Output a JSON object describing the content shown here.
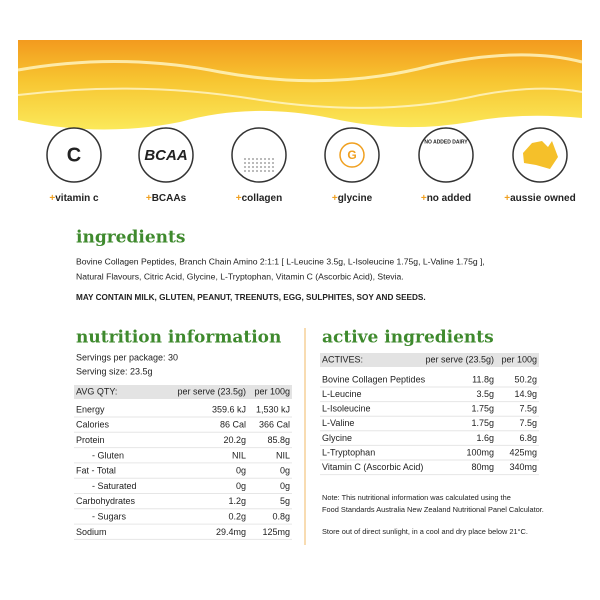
{
  "banner_icons": [
    {
      "symbol": "C",
      "bullet": "+",
      "label": "vitamin c"
    },
    {
      "symbol": "BCAA",
      "bullet": "+",
      "label": "BCAAs"
    },
    {
      "bullet": "+",
      "label": "collagen"
    },
    {
      "symbol": "G",
      "bullet": "+",
      "label": "glycine"
    },
    {
      "symbol": "NO ADDED DAIRY",
      "bullet": "+",
      "label": "no added"
    },
    {
      "bullet": "+",
      "label": "aussie owned"
    }
  ],
  "ingredients": {
    "heading": "ingredients",
    "text_lines": [
      "Bovine Collagen Peptides, Branch Chain Amino 2:1:1 [ L-Leucine 3.5g, L-Isoleucine 1.75g, L-Valine 1.75g ],",
      "Natural Flavours, Citric Acid, Glycine, L-Tryptophan, Vitamin C (Ascorbic Acid), Stevia."
    ],
    "allergens": "MAY CONTAIN MILK, GLUTEN, PEANUT, TREENUTS, EGG, SULPHITES, SOY AND SEEDS."
  },
  "nutrition": {
    "heading": "nutrition information",
    "servings_per_package": "Servings per package: 30",
    "serving_size": "Serving size: 23.5g",
    "columns": [
      "AVG QTY:",
      "per serve (23.5g)",
      "per 100g"
    ],
    "rows": [
      [
        "Energy",
        "359.6 kJ",
        "1,530 kJ"
      ],
      [
        "Calories",
        "86 Cal",
        "366 Cal"
      ],
      [
        "Protein",
        "20.2g",
        "85.8g"
      ],
      [
        "- Gluten",
        "NIL",
        "NIL"
      ],
      [
        "Fat - Total",
        "0g",
        "0g"
      ],
      [
        "- Saturated",
        "0g",
        "0g"
      ],
      [
        "Carbohydrates",
        "1.2g",
        "5g"
      ],
      [
        "- Sugars",
        "0.2g",
        "0.8g"
      ],
      [
        "Sodium",
        "29.4mg",
        "125mg"
      ]
    ]
  },
  "active": {
    "heading": "active ingredients",
    "columns": [
      "ACTIVES:",
      "per serve (23.5g)",
      "per 100g"
    ],
    "rows": [
      [
        "Bovine Collagen Peptides",
        "11.8g",
        "50.2g"
      ],
      [
        "L-Leucine",
        "3.5g",
        "14.9g"
      ],
      [
        "L-Isoleucine",
        "1.75g",
        "7.5g"
      ],
      [
        "L-Valine",
        "1.75g",
        "7.5g"
      ],
      [
        "Glycine",
        "1.6g",
        "6.8g"
      ],
      [
        "L-Tryptophan",
        "100mg",
        "425mg"
      ],
      [
        "Vitamin C (Ascorbic Acid)",
        "80mg",
        "340mg"
      ]
    ],
    "note_lines": [
      "Note: This nutritional information was calculated using the",
      "Food Standards Australia New Zealand Nutritional Panel Calculator."
    ],
    "storage": "Store out of direct sunlight, in a cool and dry place below 21°C."
  }
}
